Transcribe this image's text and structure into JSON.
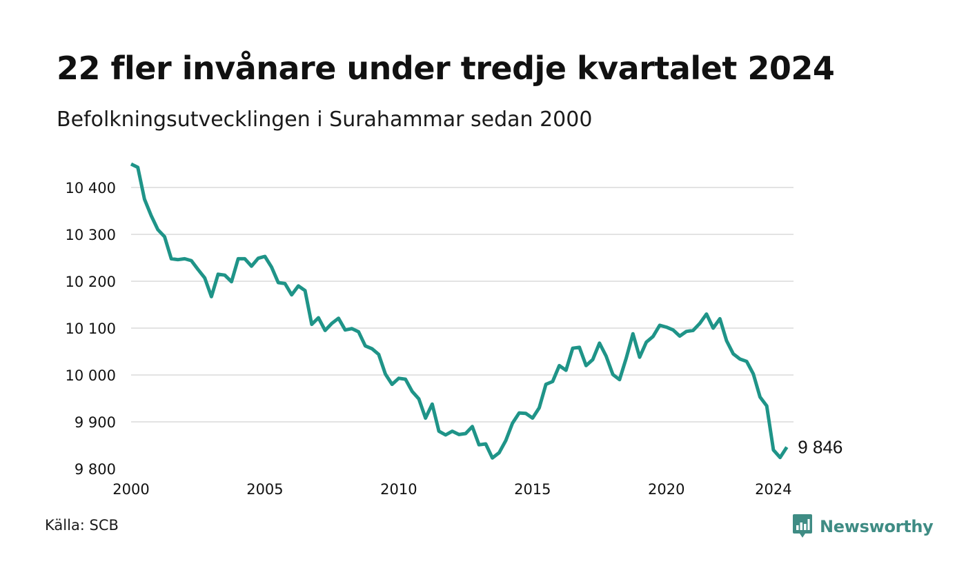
{
  "header": {
    "title": "22 fler invånare under tredje kvartalet 2024",
    "subtitle": "Befolkningsutvecklingen i Surahammar sedan 2000"
  },
  "footer": {
    "source": "Källa: SCB",
    "brand": "Newsworthy",
    "brand_icon": "newsworthy-logo-icon"
  },
  "colors": {
    "line": "#1f9488",
    "grid": "#e3e3e3",
    "brand": "#3f8c84"
  },
  "chart_data": {
    "type": "line",
    "title": "22 fler invånare under tredje kvartalet 2024",
    "subtitle": "Befolkningsutvecklingen i Surahammar sedan 2000",
    "xlabel": "",
    "ylabel": "",
    "xlim": [
      2000,
      2024.75
    ],
    "ylim": [
      9800,
      10450
    ],
    "grid": "horizontal",
    "x_ticks": [
      2000,
      2005,
      2010,
      2015,
      2020,
      2024
    ],
    "x_tick_labels": [
      "2000",
      "2005",
      "2010",
      "2015",
      "2020",
      "2024"
    ],
    "y_ticks": [
      9800,
      9900,
      10000,
      10100,
      10200,
      10300,
      10400
    ],
    "y_tick_labels": [
      "9 800",
      "9 900",
      "10 000",
      "10 100",
      "10 200",
      "10 300",
      "10 400"
    ],
    "end_label": "9 846",
    "series": [
      {
        "values": [
          [
            2000.0,
            10450
          ],
          [
            2000.25,
            10443
          ],
          [
            2000.5,
            10375
          ],
          [
            2000.75,
            10340
          ],
          [
            2001.0,
            10310
          ],
          [
            2001.25,
            10295
          ],
          [
            2001.5,
            10248
          ],
          [
            2001.75,
            10246
          ],
          [
            2002.0,
            10248
          ],
          [
            2002.25,
            10244
          ],
          [
            2002.5,
            10225
          ],
          [
            2002.75,
            10207
          ],
          [
            2003.0,
            10167
          ],
          [
            2003.25,
            10215
          ],
          [
            2003.5,
            10213
          ],
          [
            2003.75,
            10199
          ],
          [
            2004.0,
            10248
          ],
          [
            2004.25,
            10248
          ],
          [
            2004.5,
            10232
          ],
          [
            2004.75,
            10249
          ],
          [
            2005.0,
            10253
          ],
          [
            2005.25,
            10230
          ],
          [
            2005.5,
            10197
          ],
          [
            2005.75,
            10195
          ],
          [
            2006.0,
            10171
          ],
          [
            2006.25,
            10190
          ],
          [
            2006.5,
            10180
          ],
          [
            2006.75,
            10108
          ],
          [
            2007.0,
            10122
          ],
          [
            2007.25,
            10095
          ],
          [
            2007.5,
            10110
          ],
          [
            2007.75,
            10121
          ],
          [
            2008.0,
            10096
          ],
          [
            2008.25,
            10099
          ],
          [
            2008.5,
            10092
          ],
          [
            2008.75,
            10062
          ],
          [
            2009.0,
            10056
          ],
          [
            2009.25,
            10044
          ],
          [
            2009.5,
            10002
          ],
          [
            2009.75,
            9980
          ],
          [
            2010.0,
            9993
          ],
          [
            2010.25,
            9991
          ],
          [
            2010.5,
            9965
          ],
          [
            2010.75,
            9949
          ],
          [
            2011.0,
            9908
          ],
          [
            2011.25,
            9938
          ],
          [
            2011.5,
            9880
          ],
          [
            2011.75,
            9872
          ],
          [
            2012.0,
            9880
          ],
          [
            2012.25,
            9873
          ],
          [
            2012.5,
            9875
          ],
          [
            2012.75,
            9890
          ],
          [
            2013.0,
            9851
          ],
          [
            2013.25,
            9853
          ],
          [
            2013.5,
            9823
          ],
          [
            2013.75,
            9834
          ],
          [
            2014.0,
            9860
          ],
          [
            2014.25,
            9897
          ],
          [
            2014.5,
            9919
          ],
          [
            2014.75,
            9918
          ],
          [
            2015.0,
            9908
          ],
          [
            2015.25,
            9930
          ],
          [
            2015.5,
            9980
          ],
          [
            2015.75,
            9986
          ],
          [
            2016.0,
            10020
          ],
          [
            2016.25,
            10010
          ],
          [
            2016.5,
            10057
          ],
          [
            2016.75,
            10059
          ],
          [
            2017.0,
            10020
          ],
          [
            2017.25,
            10033
          ],
          [
            2017.5,
            10068
          ],
          [
            2017.75,
            10040
          ],
          [
            2018.0,
            10001
          ],
          [
            2018.25,
            9990
          ],
          [
            2018.5,
            10036
          ],
          [
            2018.75,
            10088
          ],
          [
            2019.0,
            10038
          ],
          [
            2019.25,
            10070
          ],
          [
            2019.5,
            10082
          ],
          [
            2019.75,
            10106
          ],
          [
            2020.0,
            10102
          ],
          [
            2020.25,
            10096
          ],
          [
            2020.5,
            10083
          ],
          [
            2020.75,
            10093
          ],
          [
            2021.0,
            10095
          ],
          [
            2021.25,
            10110
          ],
          [
            2021.5,
            10130
          ],
          [
            2021.75,
            10100
          ],
          [
            2022.0,
            10120
          ],
          [
            2022.25,
            10073
          ],
          [
            2022.5,
            10045
          ],
          [
            2022.75,
            10034
          ],
          [
            2023.0,
            10029
          ],
          [
            2023.25,
            10002
          ],
          [
            2023.5,
            9953
          ],
          [
            2023.75,
            9934
          ],
          [
            2024.0,
            9840
          ],
          [
            2024.25,
            9824
          ],
          [
            2024.5,
            9846
          ]
        ]
      }
    ]
  }
}
